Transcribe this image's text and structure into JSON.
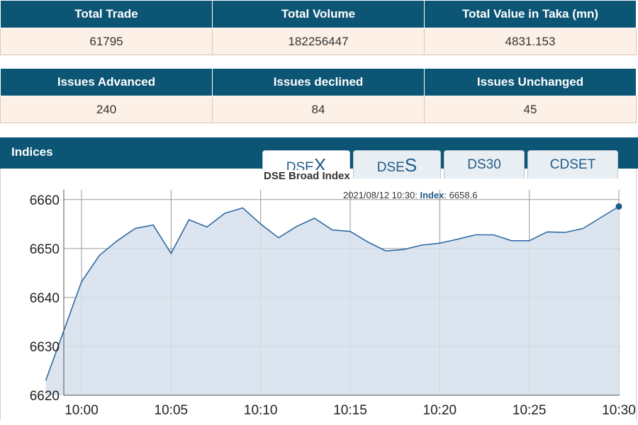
{
  "stats_top": {
    "headers": [
      "Total Trade",
      "Total Volume",
      "Total Value in Taka (mn)"
    ],
    "values": [
      "61795",
      "182256447",
      "4831.153"
    ]
  },
  "stats_bottom": {
    "headers": [
      "Issues Advanced",
      "Issues declined",
      "Issues Unchanged"
    ],
    "values": [
      "240",
      "84",
      "45"
    ]
  },
  "indices": {
    "title": "Indices",
    "tabs": [
      {
        "prefix": "DSE",
        "suffix": "X",
        "active": true
      },
      {
        "prefix": "DSE",
        "suffix": "S",
        "active": false
      },
      {
        "label": "DS30",
        "active": false
      },
      {
        "label": "CDSET",
        "active": false
      }
    ]
  },
  "colors": {
    "header_bg": "#0d5574",
    "cell_bg": "#fdf0e6",
    "line": "#2f6aa3",
    "area": "#d6e1ec"
  },
  "chart_data": {
    "type": "area",
    "title": "DSE Broad Index",
    "tooltip": {
      "time": "2021/08/12 10:30:",
      "key": "Index",
      "value": "6658.6"
    },
    "x": [
      "09:58",
      "10:00",
      "10:01",
      "10:02",
      "10:03",
      "10:04",
      "10:05",
      "10:06",
      "10:07",
      "10:08",
      "10:09",
      "10:10",
      "10:11",
      "10:12",
      "10:13",
      "10:14",
      "10:15",
      "10:16",
      "10:17",
      "10:18",
      "10:19",
      "10:20",
      "10:21",
      "10:22",
      "10:23",
      "10:24",
      "10:25",
      "10:26",
      "10:27",
      "10:28",
      "10:30"
    ],
    "values": [
      6623.0,
      6643.2,
      6648.6,
      6651.6,
      6654.1,
      6654.8,
      6649.0,
      6655.9,
      6654.4,
      6657.2,
      6658.3,
      6655.0,
      6652.2,
      6654.5,
      6656.2,
      6653.8,
      6653.5,
      6651.3,
      6649.5,
      6649.8,
      6650.7,
      6651.1,
      6651.9,
      6652.8,
      6652.8,
      6651.6,
      6651.6,
      6653.4,
      6653.3,
      6654.1,
      6658.6
    ],
    "xticks": [
      "10:00",
      "10:05",
      "10:10",
      "10:15",
      "10:20",
      "10:25",
      "10:30"
    ],
    "yticks": [
      6620,
      6630,
      6640,
      6650,
      6660
    ],
    "ylim": [
      6620,
      6662
    ],
    "grid": true
  }
}
